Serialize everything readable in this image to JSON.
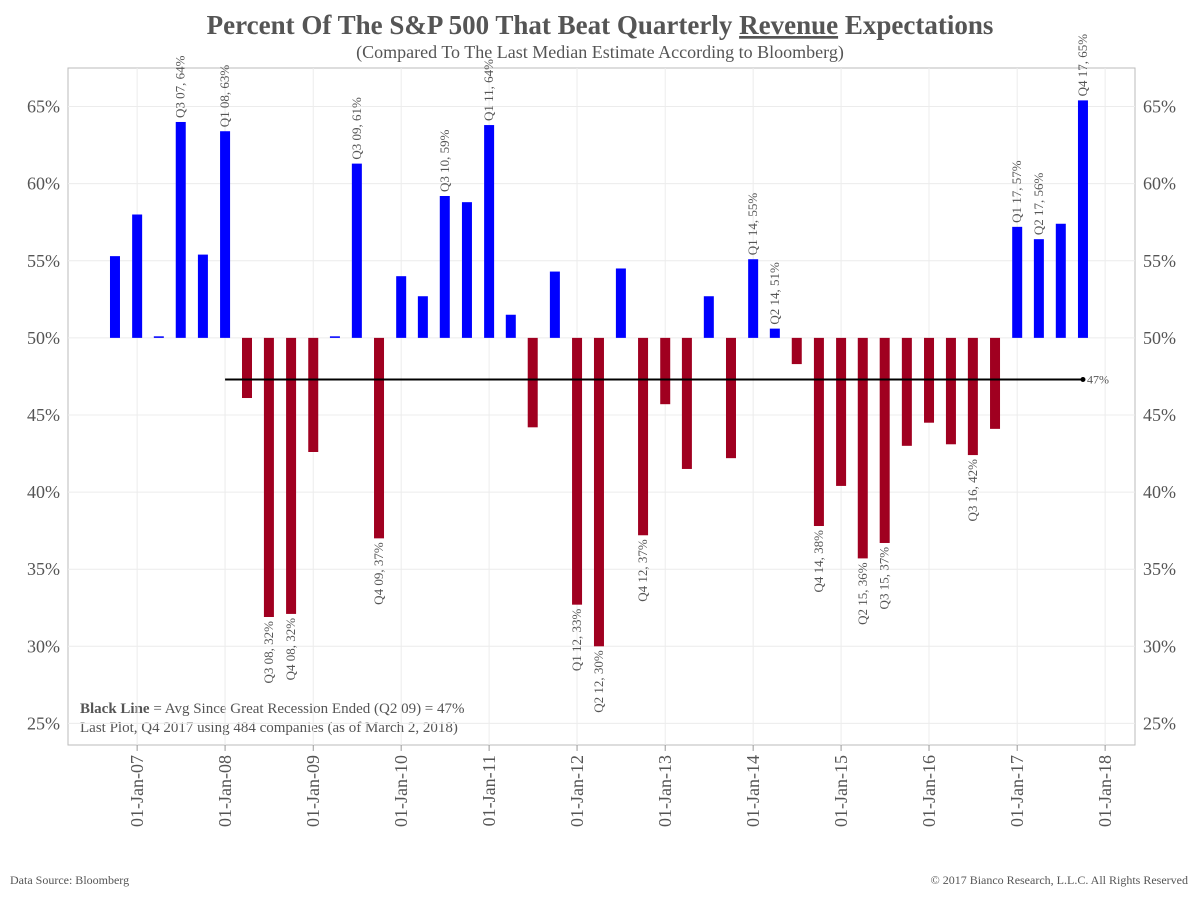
{
  "chart_data": {
    "type": "bar",
    "title_parts": [
      "Percent Of The S&P 500 That Beat Quarterly ",
      "Revenue",
      " Expectations"
    ],
    "subtitle": "(Compared To The Last Median Estimate According to Bloomberg)",
    "x": [
      "2006-10-01",
      "2007-01-01",
      "2007-04-01",
      "2007-07-01",
      "2007-10-01",
      "2008-01-01",
      "2008-04-01",
      "2008-07-01",
      "2008-10-01",
      "2009-01-01",
      "2009-04-01",
      "2009-07-01",
      "2009-10-01",
      "2010-01-01",
      "2010-04-01",
      "2010-07-01",
      "2010-10-01",
      "2011-01-01",
      "2011-04-01",
      "2011-07-01",
      "2011-10-01",
      "2012-01-01",
      "2012-04-01",
      "2012-07-01",
      "2012-10-01",
      "2013-01-01",
      "2013-04-01",
      "2013-07-01",
      "2013-10-01",
      "2014-01-01",
      "2014-04-01",
      "2014-07-01",
      "2014-10-01",
      "2015-01-01",
      "2015-04-01",
      "2015-07-01",
      "2015-10-01",
      "2016-01-01",
      "2016-04-01",
      "2016-07-01",
      "2016-10-01",
      "2017-01-01",
      "2017-04-01",
      "2017-07-01",
      "2017-10-01"
    ],
    "values": [
      55.3,
      58.0,
      50.1,
      64.0,
      55.4,
      63.4,
      46.1,
      31.9,
      32.1,
      42.6,
      50.1,
      61.3,
      37.0,
      54.0,
      52.7,
      59.2,
      58.8,
      63.8,
      51.5,
      44.2,
      54.3,
      32.7,
      30.0,
      54.5,
      37.2,
      45.7,
      41.5,
      52.7,
      42.2,
      55.1,
      50.6,
      48.3,
      37.8,
      40.4,
      35.7,
      36.7,
      43.0,
      44.5,
      43.1,
      42.4,
      44.1,
      57.2,
      56.4,
      57.4,
      65.4
    ],
    "value_labels": [
      null,
      null,
      null,
      "Q3 07, 64%",
      null,
      "Q1 08, 63%",
      null,
      "Q3 08, 32%",
      "Q4 08, 32%",
      null,
      null,
      "Q3 09, 61%",
      "Q4 09, 37%",
      null,
      null,
      "Q3 10, 59%",
      null,
      "Q1 11, 64%",
      null,
      null,
      null,
      "Q1 12, 33%",
      "Q2 12, 30%",
      null,
      "Q4 12, 37%",
      null,
      null,
      null,
      null,
      "Q1 14, 55%",
      "Q2 14, 51%",
      null,
      "Q4 14, 38%",
      null,
      "Q2 15, 36%",
      "Q3 15, 37%",
      null,
      null,
      null,
      "Q3 16, 42%",
      null,
      "Q1 17, 57%",
      "Q2 17, 56%",
      null,
      "Q4 17, 65%"
    ],
    "baseline": 50,
    "color_up": "#0000ff",
    "color_down": "#a00020",
    "xlim": [
      "2006-03-20",
      "2018-05-05"
    ],
    "xticks": [
      {
        "value": "2007-01-01",
        "label": "01-Jan-07"
      },
      {
        "value": "2008-01-01",
        "label": "01-Jan-08"
      },
      {
        "value": "2009-01-01",
        "label": "01-Jan-09"
      },
      {
        "value": "2010-01-01",
        "label": "01-Jan-10"
      },
      {
        "value": "2011-01-01",
        "label": "01-Jan-11"
      },
      {
        "value": "2012-01-01",
        "label": "01-Jan-12"
      },
      {
        "value": "2013-01-01",
        "label": "01-Jan-13"
      },
      {
        "value": "2014-01-01",
        "label": "01-Jan-14"
      },
      {
        "value": "2015-01-01",
        "label": "01-Jan-15"
      },
      {
        "value": "2016-01-01",
        "label": "01-Jan-16"
      },
      {
        "value": "2017-01-01",
        "label": "01-Jan-17"
      },
      {
        "value": "2018-01-01",
        "label": "01-Jan-18"
      }
    ],
    "ylim": [
      23.6,
      67.5
    ],
    "yticks": [
      {
        "value": 25,
        "label": "25%"
      },
      {
        "value": 30,
        "label": "30%"
      },
      {
        "value": 35,
        "label": "35%"
      },
      {
        "value": 40,
        "label": "40%"
      },
      {
        "value": 45,
        "label": "45%"
      },
      {
        "value": 50,
        "label": "50%"
      },
      {
        "value": 55,
        "label": "55%"
      },
      {
        "value": 60,
        "label": "60%"
      },
      {
        "value": 65,
        "label": "65%"
      }
    ],
    "grid": true,
    "average_line": {
      "start": "2008-01-01",
      "end": "2017-10-01",
      "value": 47.3,
      "label": "47%",
      "color": "#000000"
    },
    "note_bold": "Black Line",
    "note_line1": " = Avg Since Great Recession Ended (Q2 09) = 47%",
    "note_line2": "Last Plot, Q4 2017 using 484 companies (as of March 2, 2018)",
    "source": "Data Source: Bloomberg",
    "copyright": "© 2017 Bianco Research, L.L.C. All Rights Reserved"
  }
}
